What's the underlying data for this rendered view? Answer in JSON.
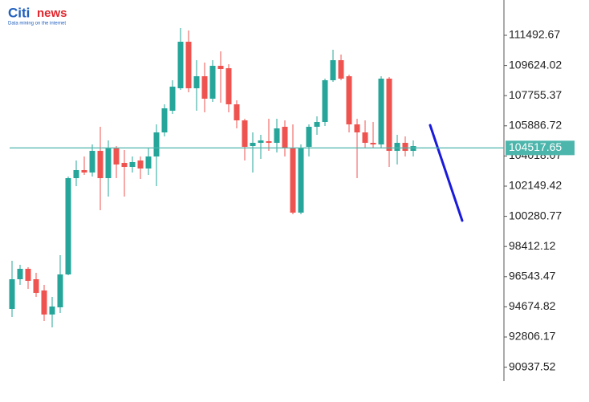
{
  "logo": {
    "brand_a": "Citi",
    "brand_b": "news",
    "tagline": "Data mining on the internet"
  },
  "chart_data": {
    "type": "candlestick",
    "ylim": [
      90072,
      113680
    ],
    "yticks": [
      111492.67,
      109624.02,
      107755.37,
      105886.72,
      104018.07,
      102149.42,
      100280.77,
      98412.12,
      96543.47,
      94674.82,
      92806.17,
      90937.52
    ],
    "up_color": "#26a69a",
    "down_color": "#ef5350",
    "current_price": 104517.65,
    "current_price_color": "#4db6ac",
    "open": [
      94545,
      96384,
      97030,
      96384,
      95688,
      94197,
      94644,
      96682,
      102646,
      103143,
      102994,
      104336,
      102646,
      104485,
      103590,
      103342,
      103739,
      103243,
      103988,
      105479,
      106821,
      108213,
      111095,
      108213,
      108958,
      107566,
      109604,
      109455,
      107219,
      106225,
      104634,
      104833,
      104932,
      104833,
      105827,
      104485,
      100509,
      104584,
      105827,
      106125,
      108710,
      109952,
      108958,
      105976,
      105479,
      104833,
      104733,
      108809,
      104336,
      104833,
      104336
    ],
    "high": [
      97527,
      97278,
      97129,
      96781,
      96036,
      95290,
      97875,
      102745,
      103739,
      103988,
      104733,
      105827,
      104982,
      104634,
      104386,
      103988,
      103988,
      104485,
      105976,
      107219,
      108710,
      111940,
      111791,
      109952,
      109803,
      109952,
      110499,
      109704,
      107467,
      106324,
      105479,
      105330,
      106324,
      106324,
      106225,
      105976,
      104733,
      105976,
      106473,
      108809,
      110598,
      110300,
      109057,
      106324,
      106225,
      106125,
      108958,
      108908,
      105330,
      105231,
      104982
    ],
    "low": [
      94048,
      96036,
      95787,
      95290,
      93799,
      93402,
      94296,
      96632,
      102149,
      102845,
      102745,
      100658,
      101503,
      102646,
      101503,
      102994,
      102597,
      102845,
      102149,
      105231,
      106622,
      108113,
      107964,
      106821,
      106722,
      107368,
      107318,
      106722,
      105728,
      103739,
      102994,
      103839,
      104336,
      104237,
      103988,
      100410,
      100410,
      103988,
      105330,
      105877,
      108610,
      108710,
      105479,
      102646,
      104485,
      104485,
      104485,
      103342,
      103491,
      103988,
      103988
    ],
    "close": [
      96384,
      97030,
      96284,
      95539,
      94197,
      94694,
      96682,
      102646,
      103143,
      102994,
      104336,
      102646,
      104485,
      103491,
      103342,
      103640,
      103243,
      103988,
      105479,
      106970,
      108312,
      111095,
      108213,
      108958,
      107566,
      109604,
      109405,
      107219,
      106225,
      104584,
      104833,
      104982,
      104833,
      105728,
      104485,
      100509,
      104485,
      105827,
      106125,
      108710,
      109952,
      108809,
      105976,
      105479,
      104833,
      104733,
      108809,
      104336,
      104833,
      104336,
      104634
    ]
  }
}
